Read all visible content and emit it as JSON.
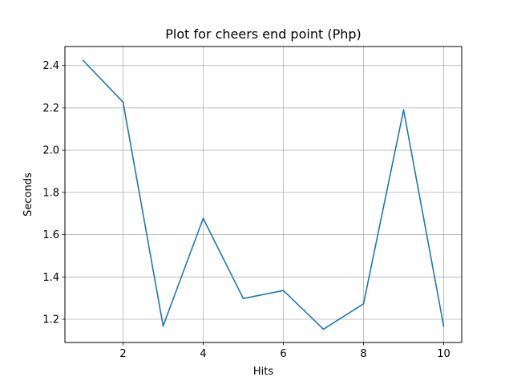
{
  "chart_data": {
    "type": "line",
    "title": "Plot for cheers end point (Php)",
    "xlabel": "Hits",
    "ylabel": "Seconds",
    "xlim": [
      0.55,
      10.45
    ],
    "ylim": [
      1.09,
      2.49
    ],
    "xticks": [
      2,
      4,
      6,
      8,
      10
    ],
    "xtick_labels": [
      "2",
      "4",
      "6",
      "8",
      "10"
    ],
    "yticks": [
      1.2,
      1.4,
      1.6,
      1.8,
      2.0,
      2.2,
      2.4
    ],
    "ytick_labels": [
      "1.2",
      "1.4",
      "1.6",
      "1.8",
      "2.0",
      "2.2",
      "2.4"
    ],
    "grid": true,
    "legend": false,
    "series": [
      {
        "color": "#1f77b4",
        "x": [
          1,
          2,
          3,
          4,
          5,
          6,
          7,
          8,
          9,
          10
        ],
        "y": [
          2.425,
          2.227,
          1.168,
          1.677,
          1.298,
          1.336,
          1.153,
          1.273,
          2.19,
          1.167
        ]
      }
    ]
  }
}
